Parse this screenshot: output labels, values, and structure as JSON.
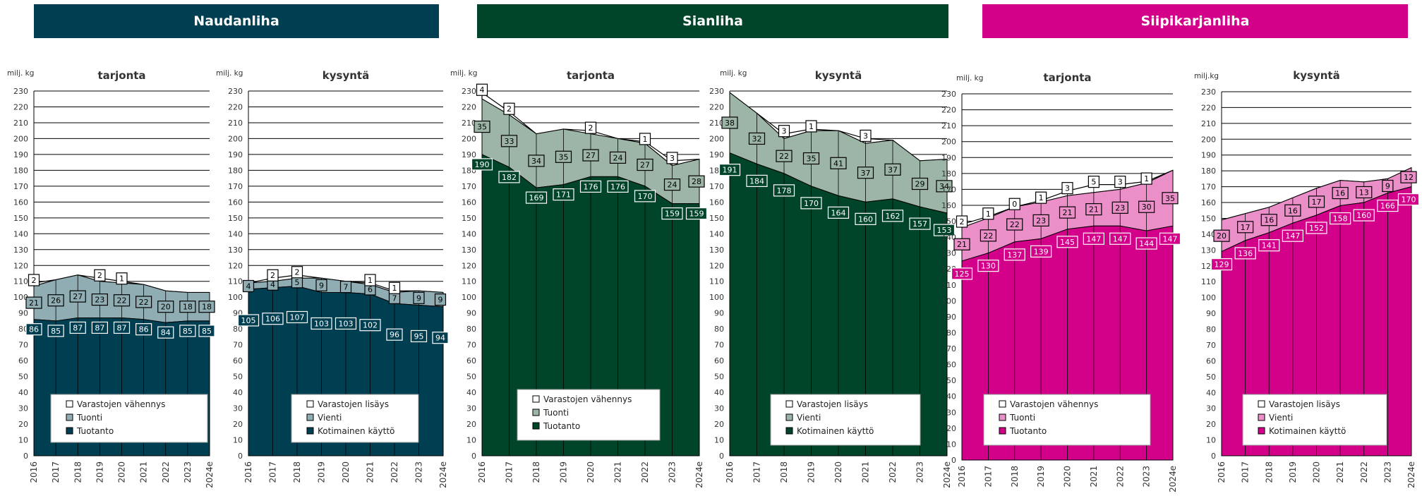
{
  "banners": [
    {
      "label": "Naudanliha",
      "color": "#003f52"
    },
    {
      "label": "Sianliha",
      "color": "#00452a"
    },
    {
      "label": "Siipikarjanliha",
      "color": "#d3008a"
    }
  ],
  "chart_data": [
    {
      "type": "area",
      "title": "tarjonta",
      "ylabel": "milj. kg",
      "ylim": [
        0,
        230
      ],
      "x": [
        "2016",
        "2017",
        "2018",
        "2019",
        "2020",
        "2021",
        "2022",
        "2023",
        "2024e"
      ],
      "colors": {
        "base": "#003f52",
        "mid": "#8fadb3",
        "top": "#ffffff"
      },
      "series": [
        {
          "name": "Tuotanto",
          "values": [
            86,
            85,
            87,
            87,
            87,
            86,
            84,
            85,
            85
          ]
        },
        {
          "name": "Tuonti",
          "values": [
            21,
            26,
            27,
            23,
            22,
            22,
            20,
            18,
            18
          ]
        },
        {
          "name": "Varastojen vähennys",
          "values": [
            2,
            null,
            null,
            2,
            1,
            null,
            null,
            null,
            null
          ]
        }
      ]
    },
    {
      "type": "area",
      "title": "kysyntä",
      "ylabel": "milj. kg",
      "ylim": [
        0,
        230
      ],
      "x": [
        "2016",
        "2017",
        "2018",
        "2019",
        "2020",
        "2021",
        "2022",
        "2023",
        "2024e"
      ],
      "colors": {
        "base": "#003f52",
        "mid": "#8fadb3",
        "top": "#ffffff"
      },
      "series": [
        {
          "name": "Kotimainen käyttö",
          "values": [
            105,
            106,
            107,
            103,
            103,
            102,
            96,
            95,
            94
          ]
        },
        {
          "name": "Vienti",
          "values": [
            4,
            4,
            5,
            9,
            7,
            6,
            7,
            9,
            9
          ]
        },
        {
          "name": "Varastojen lisäys",
          "values": [
            null,
            2,
            2,
            null,
            null,
            1,
            1,
            null,
            null
          ]
        }
      ]
    },
    {
      "type": "area",
      "title": "tarjonta",
      "ylabel": "milj. kg",
      "ylim": [
        0,
        230
      ],
      "x": [
        "2016",
        "2017",
        "2018",
        "2019",
        "2020",
        "2021",
        "2022",
        "2023",
        "2024e"
      ],
      "colors": {
        "base": "#00452a",
        "mid": "#9cb5a6",
        "top": "#ffffff"
      },
      "series": [
        {
          "name": "Tuotanto",
          "values": [
            190,
            182,
            169,
            171,
            176,
            176,
            170,
            159,
            159
          ]
        },
        {
          "name": "Tuonti",
          "values": [
            35,
            33,
            34,
            35,
            27,
            24,
            27,
            24,
            28
          ]
        },
        {
          "name": "Varastojen vähennys",
          "values": [
            4,
            2,
            null,
            null,
            2,
            null,
            1,
            3,
            null
          ]
        }
      ]
    },
    {
      "type": "area",
      "title": "kysyntä",
      "ylabel": "milj. kg",
      "ylim": [
        0,
        230
      ],
      "x": [
        "2016",
        "2017",
        "2018",
        "2019",
        "2020",
        "2021",
        "2022",
        "2023",
        "2024e"
      ],
      "colors": {
        "base": "#00452a",
        "mid": "#9cb5a6",
        "top": "#ffffff"
      },
      "series": [
        {
          "name": "Kotimainen käyttö",
          "values": [
            191,
            184,
            178,
            170,
            164,
            160,
            162,
            157,
            153
          ]
        },
        {
          "name": "Vienti",
          "values": [
            38,
            32,
            22,
            35,
            41,
            37,
            37,
            29,
            34
          ]
        },
        {
          "name": "Varastojen lisäys",
          "values": [
            null,
            null,
            3,
            1,
            null,
            3,
            null,
            null,
            null
          ]
        }
      ]
    },
    {
      "type": "area",
      "title": "tarjonta",
      "ylabel": "milj. kg",
      "ylim": [
        0,
        230
      ],
      "x": [
        "2016",
        "2017",
        "2018",
        "2019",
        "2020",
        "2021",
        "2022",
        "2023",
        "2024e"
      ],
      "colors": {
        "base": "#d3008a",
        "mid": "#eb8fc8",
        "top": "#ffffff"
      },
      "series": [
        {
          "name": "Tuotanto",
          "values": [
            125,
            130,
            137,
            139,
            145,
            147,
            147,
            144,
            147
          ]
        },
        {
          "name": "Tuonti",
          "values": [
            21,
            22,
            22,
            23,
            21,
            21,
            23,
            30,
            35
          ]
        },
        {
          "name": "Varastojen vähennys",
          "values": [
            2,
            1,
            0,
            1,
            3,
            5,
            3,
            1,
            null
          ]
        }
      ]
    },
    {
      "type": "area",
      "title": "kysyntä",
      "ylabel": "milj.kg",
      "ylim": [
        0,
        230
      ],
      "x": [
        "2016",
        "2017",
        "2018",
        "2019",
        "2020",
        "2021",
        "2022",
        "2023",
        "2024e"
      ],
      "colors": {
        "base": "#d3008a",
        "mid": "#eb8fc8",
        "top": "#ffffff"
      },
      "series": [
        {
          "name": "Kotimainen käyttö",
          "values": [
            129,
            136,
            141,
            147,
            152,
            158,
            160,
            166,
            170
          ]
        },
        {
          "name": "Vienti",
          "values": [
            20,
            17,
            16,
            16,
            17,
            16,
            13,
            9,
            12
          ]
        },
        {
          "name": "Varastojen lisäys",
          "values": [
            null,
            null,
            null,
            null,
            null,
            null,
            null,
            null,
            null
          ]
        }
      ]
    }
  ]
}
